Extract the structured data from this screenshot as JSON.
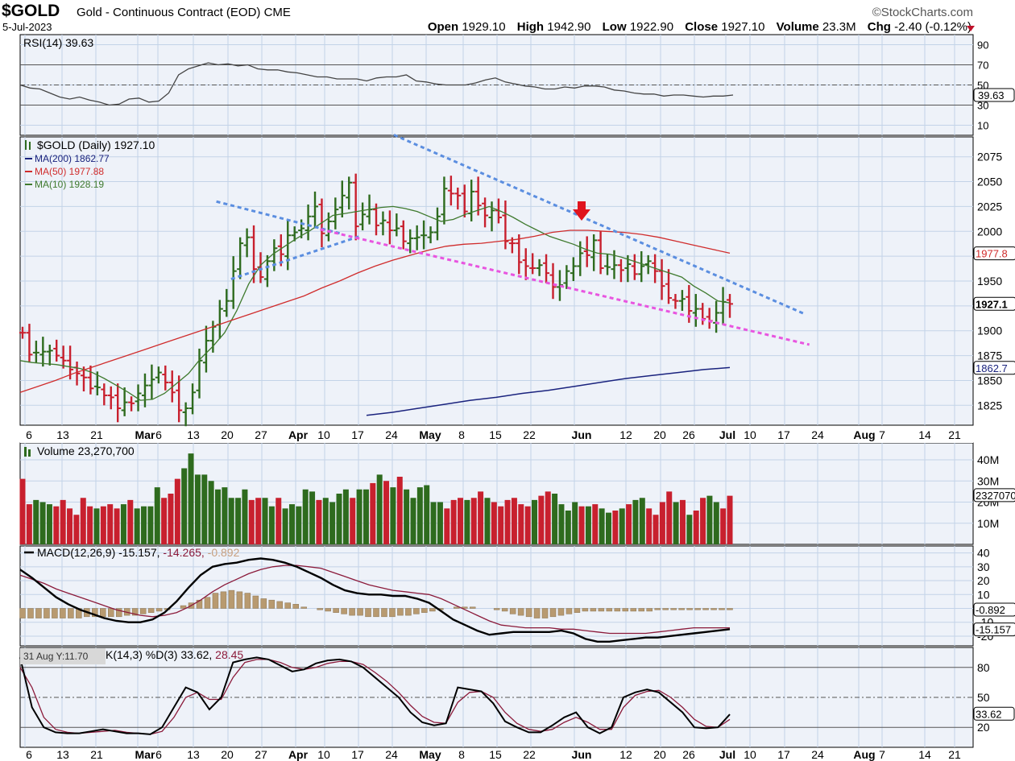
{
  "header": {
    "symbol": "$GOLD",
    "description": "Gold - Continuous Contract (EOD)",
    "exchange": "CME",
    "date": "5-Jul-2023",
    "brand": "©StockCharts.com",
    "open_label": "Open",
    "open": "1929.10",
    "high_label": "High",
    "high": "1942.90",
    "low_label": "Low",
    "low": "1922.90",
    "close_label": "Close",
    "close": "1927.10",
    "volume_label": "Volume",
    "volume": "23.3M",
    "chg_label": "Chg",
    "chg": "-2.40 (-0.12%)"
  },
  "colors": {
    "bg": "#ffffff",
    "panel": "#eef2f9",
    "grid": "#c3d3e8",
    "up": "#2e6b1e",
    "down": "#c8202e",
    "ma200": "#1a237e",
    "ma50": "#d02c2c",
    "ma10": "#3f7a2e",
    "trend_blue": "#5b8ee0",
    "trend_pink": "#e855e0",
    "arrow": "#e0141e",
    "macd": "#000000",
    "signal": "#8b1a3a",
    "hist": "#b89a70"
  },
  "chart_data": [
    {
      "type": "line",
      "panel": "rsi",
      "title": "RSI(14) 39.63",
      "y_ticks": [
        10,
        30,
        50,
        70,
        90
      ],
      "ylim": [
        0,
        100
      ],
      "current_label": "39.63",
      "reference_lines": [
        30,
        50,
        70
      ],
      "series": [
        {
          "name": "RSI(14)",
          "values": [
            50,
            47,
            46,
            42,
            38,
            36,
            38,
            35,
            33,
            30,
            31,
            36,
            37,
            33,
            34,
            42,
            60,
            66,
            69,
            72,
            70,
            71,
            69,
            70,
            66,
            65,
            65,
            63,
            62,
            60,
            58,
            58,
            56,
            56,
            56,
            54,
            57,
            58,
            58,
            60,
            54,
            53,
            51,
            50,
            50,
            50,
            52,
            55,
            57,
            53,
            51,
            49,
            48,
            46,
            46,
            48,
            47,
            49,
            49,
            48,
            45,
            44,
            42,
            41,
            41,
            39,
            40,
            40,
            39,
            38,
            39,
            39,
            40
          ]
        }
      ]
    },
    {
      "type": "ohlc",
      "panel": "price",
      "title": "$GOLD (Daily) 1927.10",
      "legend": [
        {
          "name": "MA(200)",
          "value": "1862.77"
        },
        {
          "name": "MA(50)",
          "value": "1977.88"
        },
        {
          "name": "MA(10)",
          "value": "1928.19"
        }
      ],
      "ylim": [
        1805,
        2095
      ],
      "y_ticks": [
        1825,
        1850,
        1875,
        1900,
        1925,
        1950,
        1975,
        2000,
        2025,
        2050,
        2075
      ],
      "value_tags": [
        "1977.8",
        "1927.1",
        "1862.7"
      ],
      "closes": [
        1898,
        1876,
        1878,
        1879,
        1880,
        1875,
        1870,
        1861,
        1857,
        1853,
        1842,
        1843,
        1835,
        1833,
        1822,
        1828,
        1827,
        1837,
        1845,
        1851,
        1858,
        1848,
        1838,
        1820,
        1822,
        1838,
        1870,
        1890,
        1904,
        1922,
        1930,
        1960,
        1988,
        1994,
        1962,
        1954,
        1970,
        1983,
        1977,
        1996,
        1999,
        2003,
        2015,
        2025,
        1998,
        2010,
        2022,
        2036,
        2049,
        2005,
        2017,
        2022,
        2006,
        2011,
        2001,
        2003,
        1990,
        1993,
        1994,
        1996,
        1999,
        2015,
        2043,
        2038,
        2036,
        2020,
        2040,
        2026,
        2016,
        2021,
        2014,
        1990,
        1988,
        1969,
        1965,
        1963,
        1966,
        1958,
        1944,
        1946,
        1960,
        1965,
        1978,
        1976,
        1991,
        1963,
        1964,
        1966,
        1961,
        1967,
        1957,
        1965,
        1970,
        1960,
        1945,
        1933,
        1930,
        1932,
        1920,
        1922,
        1912,
        1910,
        1918,
        1929,
        1927
      ],
      "ma10": [
        1870,
        1868,
        1867,
        1866,
        1864,
        1862,
        1858,
        1852,
        1845,
        1838,
        1830,
        1831,
        1837,
        1847,
        1857,
        1872,
        1884,
        1898,
        1920,
        1947,
        1966,
        1977,
        1985,
        1993,
        2000,
        2008,
        2016,
        2018,
        2020,
        2022,
        2024,
        2025,
        2023,
        2020,
        2015,
        2010,
        2012,
        2017,
        2021,
        2025,
        2020,
        2014,
        2007,
        2001,
        1995,
        1991,
        1987,
        1982,
        1978,
        1977,
        1974,
        1970,
        1966,
        1962,
        1958,
        1954,
        1945,
        1938,
        1930,
        1928
      ],
      "ma50": [
        1838,
        1844,
        1850,
        1857,
        1863,
        1869,
        1875,
        1881,
        1887,
        1893,
        1899,
        1905,
        1911,
        1917,
        1923,
        1929,
        1935,
        1943,
        1950,
        1958,
        1965,
        1971,
        1976,
        1981,
        1985,
        1987,
        1988,
        1990,
        1992,
        1995,
        1999,
        2001,
        2001,
        2000,
        1999,
        1997,
        1994,
        1990,
        1986,
        1982,
        1978
      ],
      "ma200": [
        1815,
        1818,
        1822,
        1826,
        1830,
        1833,
        1837,
        1840,
        1844,
        1848,
        1852,
        1855,
        1858,
        1861,
        1863
      ],
      "trendlines": [
        {
          "from": [
            "Mar 17",
            2030
          ],
          "to": [
            "Apr 10",
            1998
          ]
        },
        {
          "from": [
            "Mar 20",
            1952
          ],
          "to": [
            "Apr 14",
            1995
          ]
        },
        {
          "from": [
            "Apr 6",
            2002
          ],
          "to": [
            "Jul 18",
            1886
          ]
        },
        {
          "from": [
            "Apr 21",
            2097
          ],
          "to": [
            "Jul 17",
            1917
          ]
        }
      ],
      "annotation": {
        "type": "arrow-down",
        "at": "Jun 1"
      }
    },
    {
      "type": "bar",
      "panel": "volume",
      "title": "Volume 23,270,700",
      "y_ticks": [
        "10M",
        "20M",
        "30M",
        "40M"
      ],
      "ylim": [
        0,
        48
      ],
      "current_label": "23270700",
      "values_millions": [
        31,
        19,
        21,
        20,
        19,
        18,
        21,
        17,
        14,
        22,
        18,
        17,
        18,
        19,
        17,
        19,
        21,
        17,
        18,
        18,
        27,
        22,
        24,
        31,
        36,
        43,
        33,
        33,
        30,
        26,
        27,
        22,
        22,
        26,
        21,
        22,
        22,
        18,
        22,
        17,
        19,
        18,
        26,
        25,
        21,
        22,
        20,
        24,
        26,
        22,
        26,
        26,
        29,
        33,
        30,
        27,
        32,
        26,
        22,
        27,
        28,
        20,
        20,
        17,
        21,
        22,
        21,
        22,
        25,
        22,
        20,
        18,
        21,
        22,
        19,
        18,
        21,
        23,
        25,
        24,
        19,
        16,
        20,
        18,
        18,
        19,
        17,
        15,
        16,
        17,
        19,
        21,
        22,
        17,
        14,
        20,
        25,
        20,
        21,
        14,
        16,
        22,
        23,
        20,
        17,
        23
      ]
    },
    {
      "type": "line",
      "panel": "macd",
      "title_prefix": "MACD(12,26,9)",
      "title_macd": "-15.157,",
      "title_signal": "-14.265,",
      "title_hist": "-0.892",
      "y_ticks": [
        -20,
        -10,
        0,
        10,
        20,
        30,
        40
      ],
      "ylim": [
        -27,
        45
      ],
      "value_tags": [
        "-0.892",
        "-15.157"
      ],
      "series": [
        {
          "name": "MACD",
          "values": [
            28,
            22,
            15,
            8,
            3,
            -1,
            -4,
            -7,
            -9,
            -10,
            -10,
            -8,
            -3,
            5,
            15,
            24,
            30,
            32,
            33,
            35,
            36,
            35,
            33,
            30,
            26,
            22,
            17,
            13,
            11,
            10,
            10,
            9,
            9,
            7,
            4,
            -2,
            -8,
            -12,
            -16,
            -19,
            -18,
            -17,
            -17,
            -17,
            -17,
            -16,
            -18,
            -22,
            -24,
            -24,
            -23,
            -22,
            -21,
            -21,
            -20,
            -19,
            -18,
            -17,
            -16,
            -15
          ]
        },
        {
          "name": "Signal",
          "values": [
            24,
            21,
            18,
            14,
            11,
            8,
            5,
            2,
            -1,
            -3,
            -5,
            -6,
            -5,
            -3,
            1,
            6,
            12,
            17,
            21,
            25,
            28,
            30,
            31,
            31,
            30,
            29,
            26,
            23,
            20,
            17,
            15,
            13,
            12,
            11,
            10,
            7,
            3,
            -1,
            -5,
            -9,
            -12,
            -13,
            -14,
            -14,
            -14,
            -15,
            -15,
            -16,
            -17,
            -18,
            -18,
            -18,
            -18,
            -17,
            -16,
            -15,
            -14,
            -14,
            -14,
            -14
          ]
        },
        {
          "name": "Histogram",
          "values": [
            -7,
            -7,
            -7,
            -7,
            -7,
            -7,
            -7,
            -7,
            -6,
            -6,
            -6,
            -6,
            -6,
            -5,
            -5,
            -4,
            -3,
            -2,
            -1,
            0,
            2,
            4,
            6,
            8,
            11,
            12,
            13,
            12,
            11,
            9,
            7,
            6,
            5,
            4,
            3,
            1,
            0,
            -1,
            -2,
            -3,
            -4,
            -5,
            -5,
            -6,
            -6,
            -6,
            -6,
            -5,
            -5,
            -4,
            -3,
            -2,
            -1,
            0,
            1,
            1,
            1,
            0,
            0,
            -1,
            -2,
            -4,
            -5,
            -6,
            -7,
            -7,
            -6,
            -5,
            -4,
            -3,
            -2,
            -2,
            -2,
            -2,
            -2,
            -2,
            -2,
            -2,
            -2,
            -1,
            -1,
            -1,
            -1,
            -1,
            -1,
            -1,
            -1,
            -1,
            -1
          ]
        }
      ]
    },
    {
      "type": "line",
      "panel": "stochastic",
      "tooltip": "31 Aug Y:11.70",
      "title_prefix": "K(14,3) %D(3)",
      "title_k": "33.62,",
      "title_d": "28.45",
      "y_ticks": [
        20,
        50,
        80
      ],
      "ylim": [
        0,
        100
      ],
      "current_label": "33.62",
      "reference_lines": [
        20,
        50,
        80
      ],
      "series": [
        {
          "name": "%K",
          "values": [
            90,
            40,
            20,
            15,
            14,
            14,
            16,
            18,
            16,
            14,
            14,
            13,
            20,
            40,
            60,
            55,
            38,
            50,
            85,
            88,
            90,
            88,
            82,
            76,
            78,
            84,
            87,
            88,
            86,
            80,
            70,
            60,
            50,
            35,
            25,
            22,
            24,
            60,
            58,
            56,
            44,
            26,
            20,
            15,
            15,
            22,
            30,
            35,
            20,
            14,
            20,
            50,
            55,
            58,
            55,
            45,
            35,
            20,
            19,
            20,
            33
          ]
        },
        {
          "name": "%D",
          "values": [
            80,
            60,
            30,
            18,
            15,
            14,
            15,
            16,
            17,
            15,
            14,
            13,
            16,
            30,
            50,
            55,
            48,
            48,
            70,
            85,
            88,
            88,
            85,
            80,
            78,
            80,
            84,
            86,
            86,
            83,
            75,
            66,
            55,
            42,
            31,
            25,
            24,
            45,
            55,
            56,
            50,
            35,
            24,
            18,
            16,
            18,
            25,
            30,
            25,
            18,
            18,
            40,
            52,
            56,
            57,
            50,
            40,
            28,
            21,
            20,
            28
          ]
        }
      ]
    }
  ],
  "x_axis": {
    "tick_labels": [
      {
        "label": "6",
        "bold": false
      },
      {
        "label": "13",
        "bold": false
      },
      {
        "label": "21",
        "bold": false
      },
      {
        "label": "Mar",
        "bold": true
      },
      {
        "label": "6",
        "bold": false
      },
      {
        "label": "13",
        "bold": false
      },
      {
        "label": "20",
        "bold": false
      },
      {
        "label": "27",
        "bold": false
      },
      {
        "label": "Apr",
        "bold": true
      },
      {
        "label": "10",
        "bold": false
      },
      {
        "label": "17",
        "bold": false
      },
      {
        "label": "24",
        "bold": false
      },
      {
        "label": "May",
        "bold": true
      },
      {
        "label": "8",
        "bold": false
      },
      {
        "label": "15",
        "bold": false
      },
      {
        "label": "22",
        "bold": false
      },
      {
        "label": "Jun",
        "bold": true
      },
      {
        "label": "12",
        "bold": false
      },
      {
        "label": "20",
        "bold": false
      },
      {
        "label": "26",
        "bold": false
      },
      {
        "label": "Jul",
        "bold": true
      },
      {
        "label": "10",
        "bold": false
      },
      {
        "label": "17",
        "bold": false
      },
      {
        "label": "24",
        "bold": false
      },
      {
        "label": "Aug",
        "bold": true
      },
      {
        "label": "7",
        "bold": false
      },
      {
        "label": "14",
        "bold": false
      },
      {
        "label": "21",
        "bold": false
      }
    ]
  }
}
